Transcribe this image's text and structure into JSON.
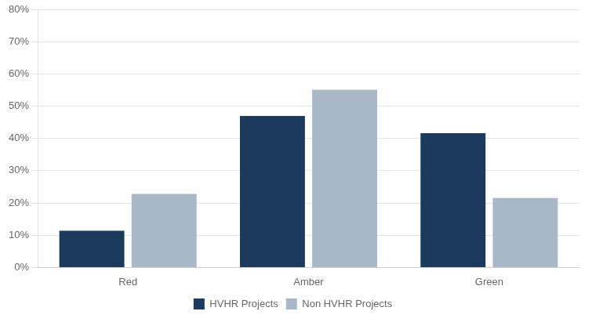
{
  "chart_data": {
    "type": "bar",
    "categories": [
      "Red",
      "Amber",
      "Green"
    ],
    "series": [
      {
        "name": "HVHR Projects",
        "color": "#1B3A5C",
        "values": [
          0.114,
          0.47,
          0.416
        ]
      },
      {
        "name": "Non HVHR Projects",
        "color": "#A9B8C8",
        "values": [
          0.228,
          0.551,
          0.215
        ]
      }
    ],
    "ylim": [
      0,
      0.8
    ],
    "yticks": [
      {
        "value": 0.0,
        "label": "0%"
      },
      {
        "value": 0.1,
        "label": "10%"
      },
      {
        "value": 0.2,
        "label": "20%"
      },
      {
        "value": 0.3,
        "label": "30%"
      },
      {
        "value": 0.4,
        "label": "40%"
      },
      {
        "value": 0.5,
        "label": "50%"
      },
      {
        "value": 0.6,
        "label": "60%"
      },
      {
        "value": 0.7,
        "label": "70%"
      },
      {
        "value": 0.8,
        "label": "80%"
      }
    ],
    "grid": true,
    "legend": "bottom"
  }
}
